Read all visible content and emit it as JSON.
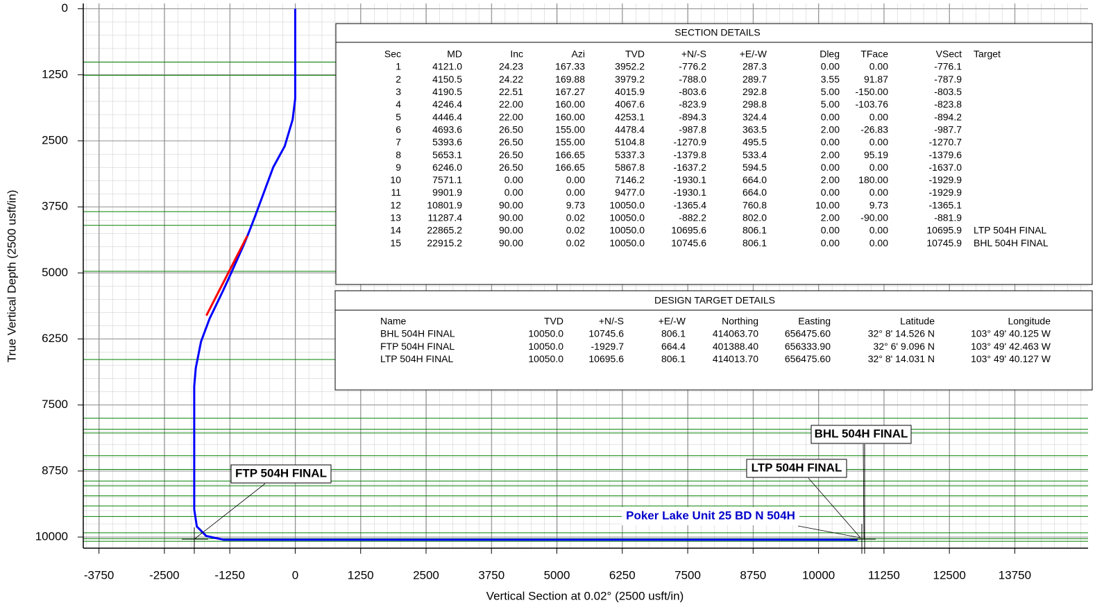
{
  "chart_data": {
    "type": "line",
    "xlabel": "Vertical Section at 0.02° (2500 usft/in)",
    "ylabel": "True Vertical Depth (2500 usft/in)",
    "xlim": [
      -4050,
      15150
    ],
    "ylim": [
      -100,
      10210
    ],
    "y_inverted": true,
    "grid": true,
    "xticks": [
      -3750,
      -2500,
      -1250,
      0,
      1250,
      2500,
      3750,
      5000,
      6250,
      7500,
      8750,
      10000,
      11250,
      12500,
      13750
    ],
    "yticks": [
      0,
      1250,
      2500,
      3750,
      5000,
      6250,
      7500,
      8750,
      10000
    ],
    "horizons": {
      "color": "#008000",
      "values": [
        1010,
        1260,
        3840,
        4100,
        4970,
        6640,
        7750,
        7960,
        8030,
        8460,
        8720,
        8940,
        9030,
        9220,
        9410,
        9610,
        9920,
        10030,
        10080
      ]
    },
    "series": [
      {
        "color": "#0000ff",
        "x": [
          0,
          0,
          -50,
          -200,
          -420,
          -776.1,
          -894.2,
          -987.7,
          -1270.7,
          -1379.6,
          -1637.0,
          -1800,
          -1900,
          -1929.9,
          -1929.9,
          -1880,
          -1700,
          -1365.1,
          -881.9,
          10695.9,
          10745.9
        ],
        "values": [
          0,
          1700,
          2100,
          2600,
          3000,
          3952.2,
          4253.1,
          4478.4,
          5104.8,
          5337.3,
          5867.8,
          6300,
          6800,
          7146.2,
          9477.0,
          9800,
          9980,
          10050.0,
          10050.0,
          10050.0,
          10050.0
        ]
      },
      {
        "color": "#ff0000",
        "x": [
          -1698,
          -915
        ],
        "values": [
          5808,
          4297
        ]
      }
    ],
    "annotations": [
      "FTP 504H FINAL",
      "BHL 504H FINAL",
      "LTP 504H FINAL",
      "Poker Lake Unit 25 BD N 504H"
    ],
    "annotation_colors": [
      "#000000",
      "#000000",
      "#000000",
      "#0000cc"
    ]
  },
  "section_details": {
    "title": "SECTION  DETAILS",
    "columns": [
      "Sec",
      "MD",
      "Inc",
      "Azi",
      "TVD",
      "+N/-S",
      "+E/-W",
      "Dleg",
      "TFace",
      "VSect",
      "Target"
    ],
    "rows": [
      [
        "1",
        "4121.0",
        "24.23",
        "167.33",
        "3952.2",
        "-776.2",
        "287.3",
        "0.00",
        "0.00",
        "-776.1"
      ],
      [
        "2",
        "4150.5",
        "24.22",
        "169.88",
        "3979.2",
        "-788.0",
        "289.7",
        "3.55",
        "91.87",
        "-787.9"
      ],
      [
        "3",
        "4190.5",
        "22.51",
        "167.27",
        "4015.9",
        "-803.6",
        "292.8",
        "5.00",
        "-150.00",
        "-803.5"
      ],
      [
        "4",
        "4246.4",
        "22.00",
        "160.00",
        "4067.6",
        "-823.9",
        "298.8",
        "5.00",
        "-103.76",
        "-823.8"
      ],
      [
        "5",
        "4446.4",
        "22.00",
        "160.00",
        "4253.1",
        "-894.3",
        "324.4",
        "0.00",
        "0.00",
        "-894.2"
      ],
      [
        "6",
        "4693.6",
        "26.50",
        "155.00",
        "4478.4",
        "-987.8",
        "363.5",
        "2.00",
        "-26.83",
        "-987.7"
      ],
      [
        "7",
        "5393.6",
        "26.50",
        "155.00",
        "5104.8",
        "-1270.9",
        "495.5",
        "0.00",
        "0.00",
        "-1270.7"
      ],
      [
        "8",
        "5653.1",
        "26.50",
        "166.65",
        "5337.3",
        "-1379.8",
        "533.4",
        "2.00",
        "95.19",
        "-1379.6"
      ],
      [
        "9",
        "6246.0",
        "26.50",
        "166.65",
        "5867.8",
        "-1637.2",
        "594.5",
        "0.00",
        "0.00",
        "-1637.0"
      ],
      [
        "10",
        "7571.1",
        "0.00",
        "0.00",
        "7146.2",
        "-1930.1",
        "664.0",
        "2.00",
        "180.00",
        "-1929.9"
      ],
      [
        "11",
        "9901.9",
        "0.00",
        "0.00",
        "9477.0",
        "-1930.1",
        "664.0",
        "0.00",
        "0.00",
        "-1929.9"
      ],
      [
        "12",
        "10801.9",
        "90.00",
        "9.73",
        "10050.0",
        "-1365.4",
        "760.8",
        "10.00",
        "9.73",
        "-1365.1"
      ],
      [
        "13",
        "11287.4",
        "90.00",
        "0.02",
        "10050.0",
        "-882.2",
        "802.0",
        "2.00",
        "-90.00",
        "-881.9"
      ],
      [
        "14",
        "22865.2",
        "90.00",
        "0.02",
        "10050.0",
        "10695.6",
        "806.1",
        "0.00",
        "0.00",
        "10695.9",
        "LTP  504H  FINAL"
      ],
      [
        "15",
        "22915.2",
        "90.00",
        "0.02",
        "10050.0",
        "10745.6",
        "806.1",
        "0.00",
        "0.00",
        "10745.9",
        "BHL  504H  FINAL"
      ]
    ]
  },
  "design_target_details": {
    "title": "DESIGN  TARGET  DETAILS",
    "columns": [
      "Name",
      "TVD",
      "+N/-S",
      "+E/-W",
      "Northing",
      "Easting",
      "Latitude",
      "Longitude"
    ],
    "rows": [
      [
        "BHL  504H  FINAL",
        "10050.0",
        "10745.6",
        "806.1",
        "414063.70",
        "656475.60",
        "32° 8' 14.526 N",
        "103° 49' 40.125 W"
      ],
      [
        "FTP  504H  FINAL",
        "10050.0",
        "-1929.7",
        "664.4",
        "401388.40",
        "656333.90",
        "32° 6' 9.096 N",
        "103° 49' 42.463 W"
      ],
      [
        "LTP  504H  FINAL",
        "10050.0",
        "10695.6",
        "806.1",
        "414013.70",
        "656475.60",
        "32° 8' 14.031 N",
        "103° 49' 40.127 W"
      ]
    ]
  }
}
